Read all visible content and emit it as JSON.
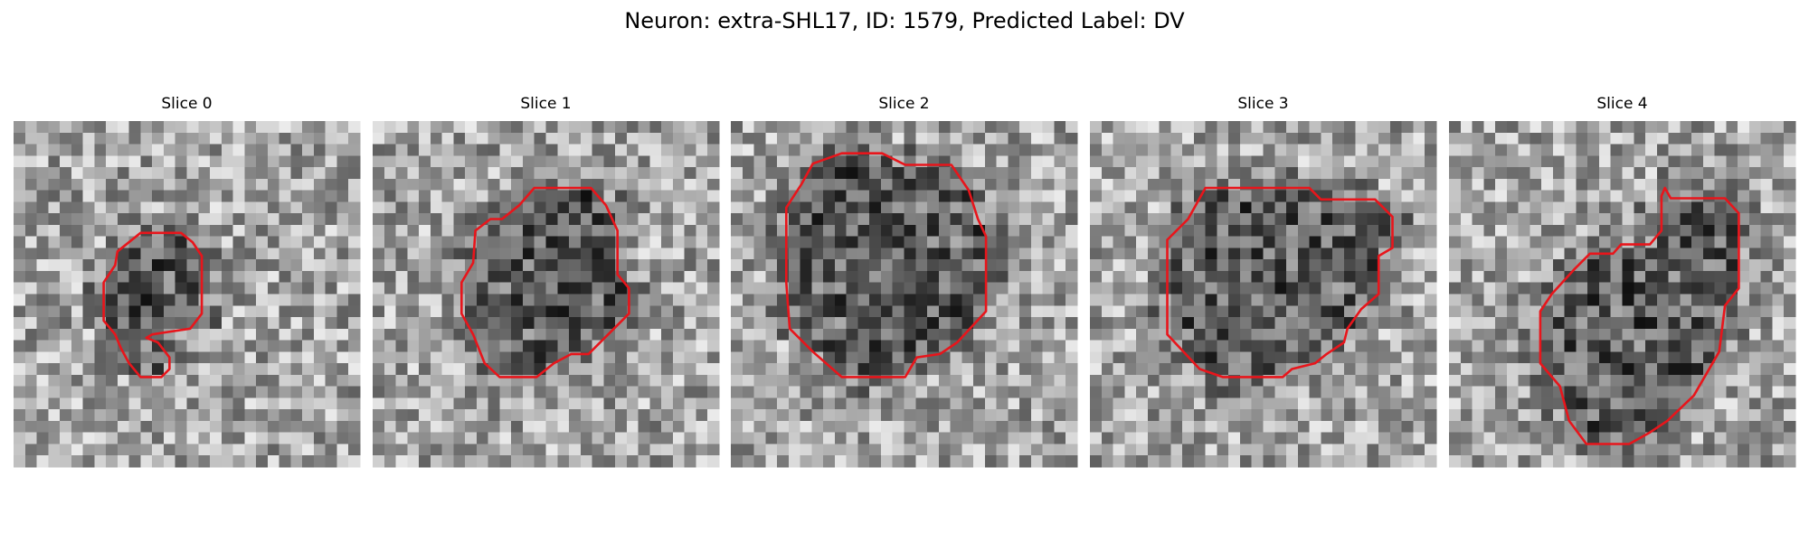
{
  "figure": {
    "title": "Neuron: extra-SHL17, ID: 1579, Predicted Label: DV",
    "panels": [
      {
        "title": "Slice 0"
      },
      {
        "title": "Slice 1"
      },
      {
        "title": "Slice 2"
      },
      {
        "title": "Slice 3"
      },
      {
        "title": "Slice 4"
      }
    ]
  }
}
